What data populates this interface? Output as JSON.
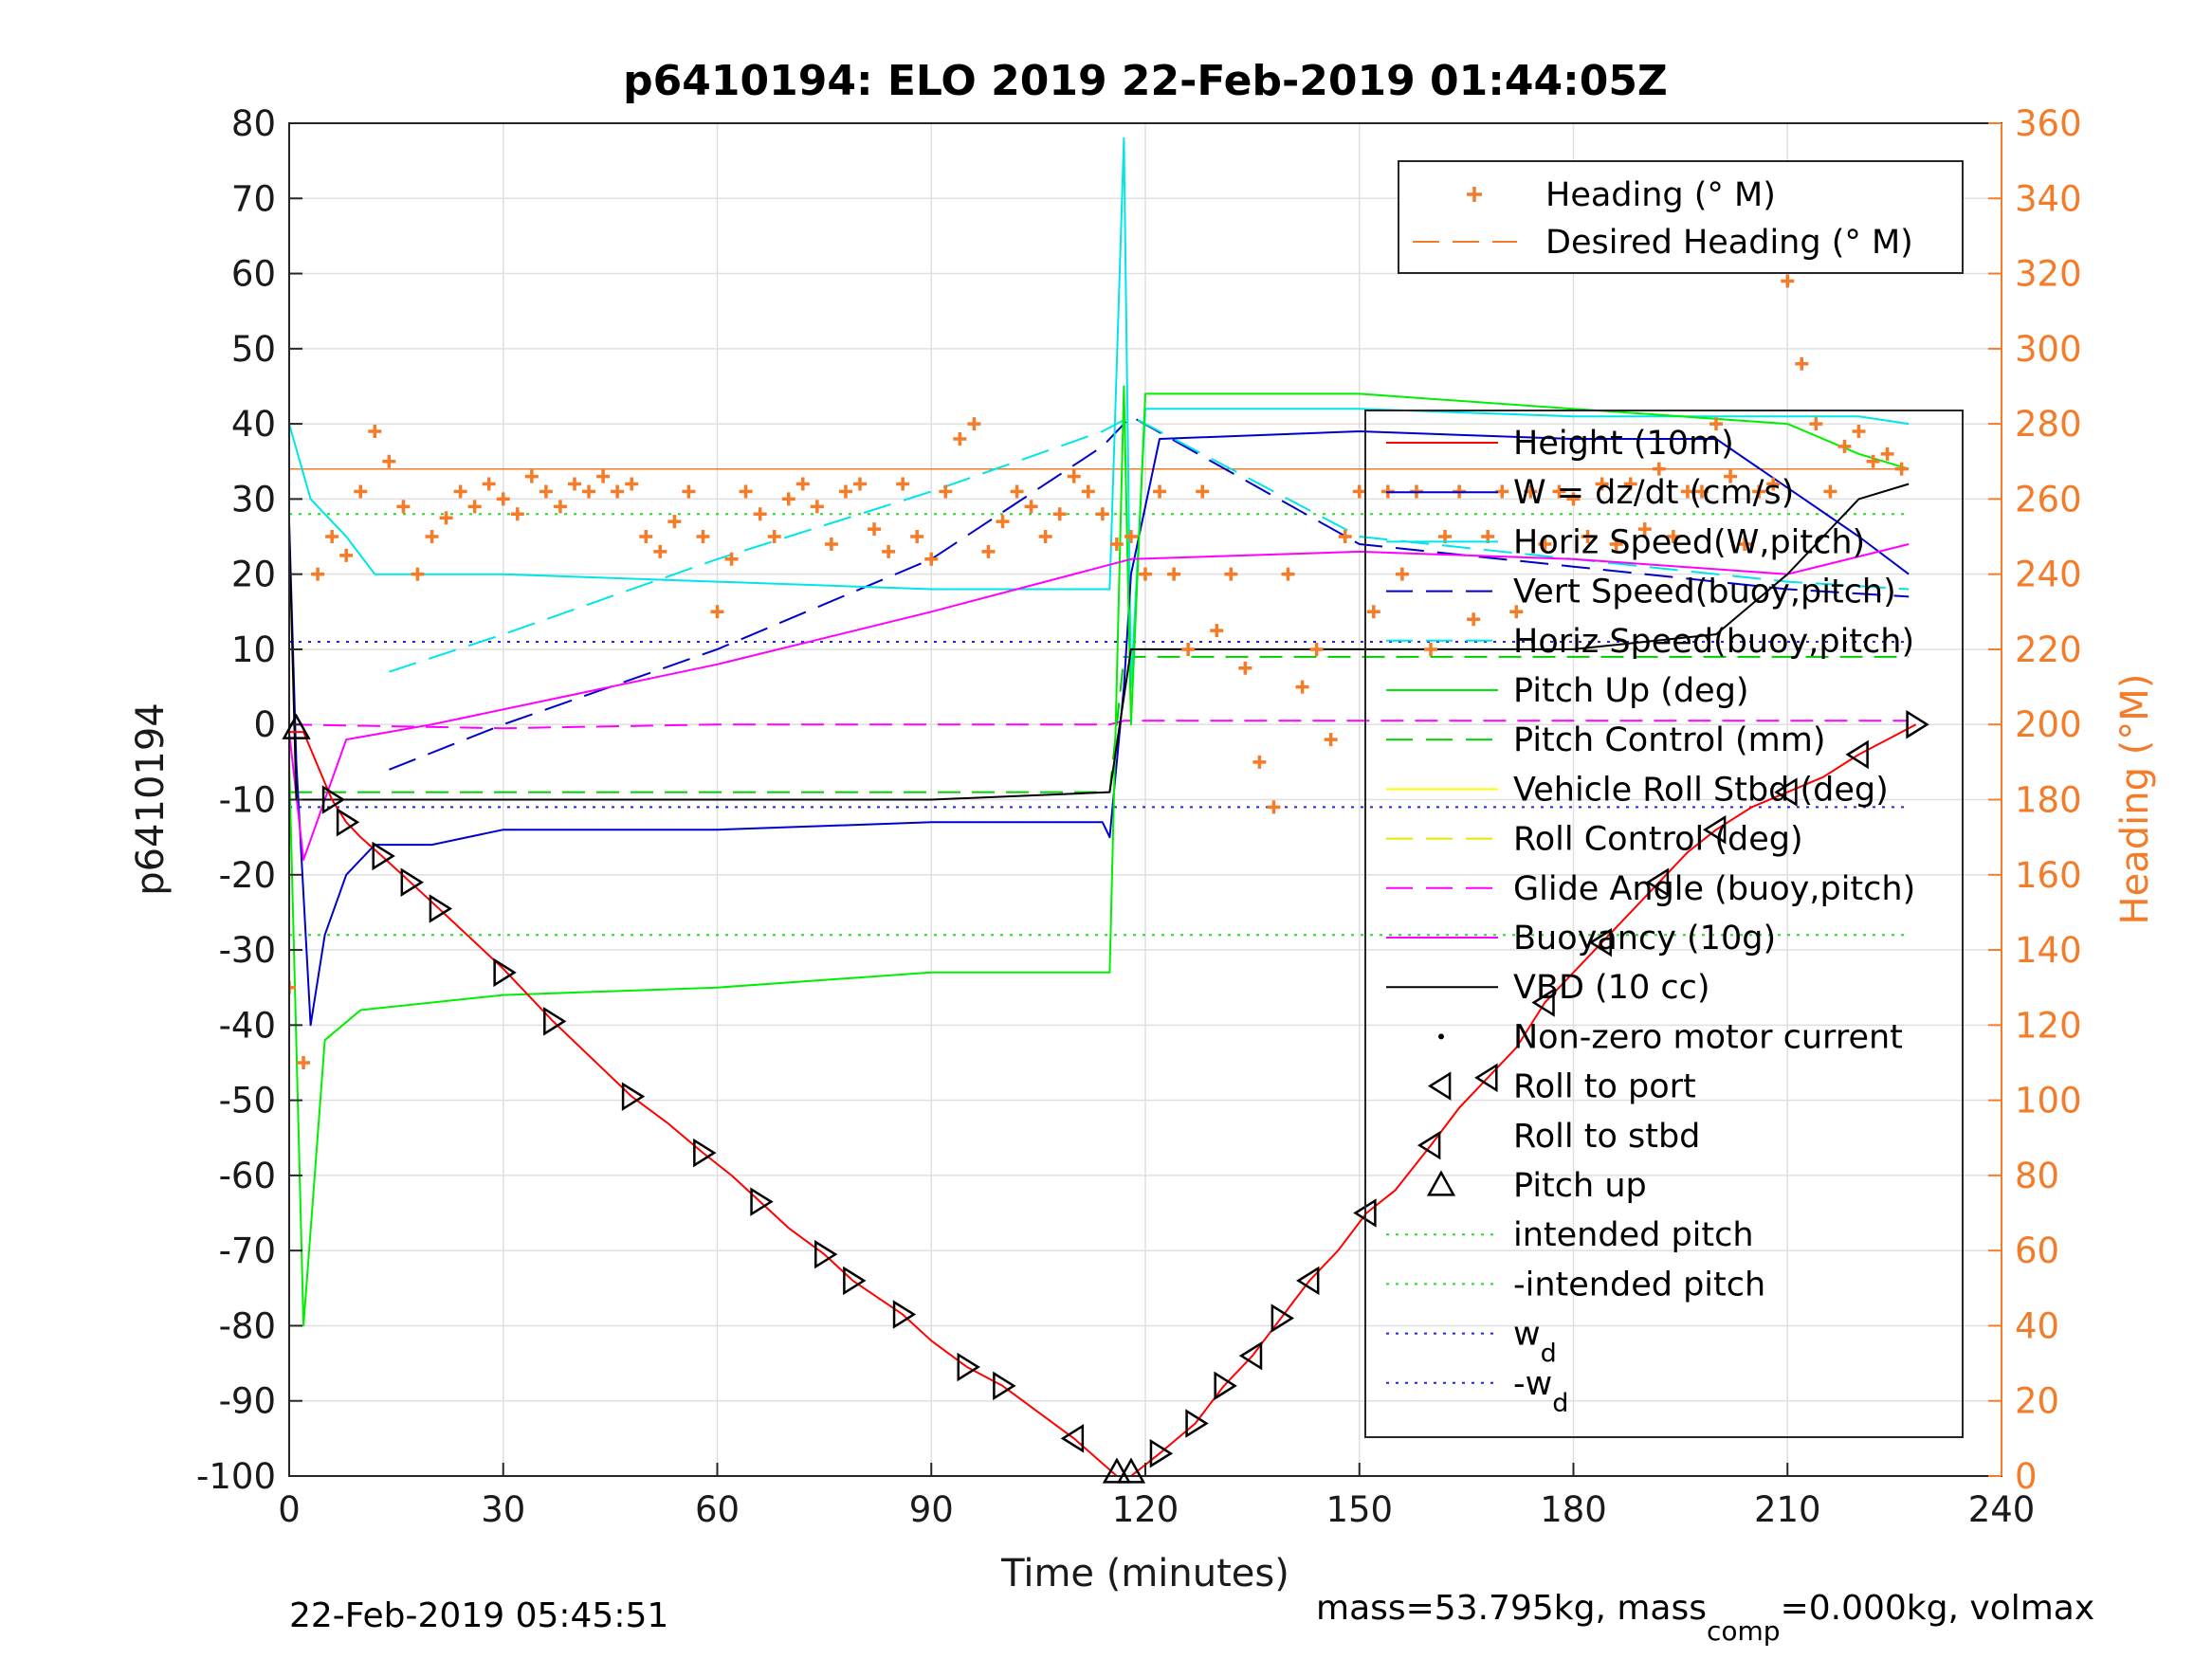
{
  "chart_data": {
    "type": "line",
    "title": "p6410194: ELO 2019 22-Feb-2019 01:44:05Z",
    "xlabel": "Time (minutes)",
    "ylabel": "p6410194",
    "ylabel_right": "Heading (°M)",
    "xlim": [
      0,
      240
    ],
    "ylim": [
      -100,
      80
    ],
    "ylim_right": [
      0,
      360
    ],
    "grid": true,
    "x_ticks": [
      "0",
      "30",
      "60",
      "90",
      "120",
      "150",
      "180",
      "210",
      "240"
    ],
    "y_ticks": [
      "80",
      "70",
      "60",
      "50",
      "40",
      "30",
      "20",
      "10",
      "0",
      "-10",
      "-20",
      "-30",
      "-40",
      "-50",
      "-60",
      "-70",
      "-80",
      "-90",
      "-100"
    ],
    "y_ticks_right": [
      "360",
      "340",
      "320",
      "300",
      "280",
      "260",
      "240",
      "220",
      "200",
      "180",
      "160",
      "140",
      "120",
      "100",
      "80",
      "60",
      "40",
      "20",
      "0"
    ],
    "legend_top": [
      "Heading (° M)",
      "Desired Heading (° M)"
    ],
    "legend_main": [
      "Height (10m)",
      "W = dz/dt (cm/s)",
      "Horiz Speed(W,pitch)",
      "Vert Speed(buoy,pitch)",
      "Horiz Speed(buoy,pitch)",
      "Pitch Up (deg)",
      "Pitch Control (mm)",
      "Vehicle Roll Stbd (deg)",
      "Roll Control (deg)",
      "Glide Angle (buoy,pitch)",
      "Buoyancy (10g)",
      "VBD (10 cc)",
      "Non-zero motor current",
      "Roll to port",
      "Roll to stbd",
      "Pitch up",
      "intended pitch",
      "-intended pitch",
      "w",
      "-w"
    ],
    "legend_subscript": "d",
    "footer_left": "22-Feb-2019 05:45:51",
    "footer_right_a": "mass=53.795kg, mass",
    "footer_right_sub": "comp",
    "footer_right_b": "=0.000kg, volmax",
    "colors": {
      "height": "#ff0000",
      "w": "#0000cc",
      "horiz_w": "#00e5e5",
      "vert_buoy": "#0000cc",
      "horiz_buoy": "#00e5e5",
      "pitch": "#00ee00",
      "pitch_ctl": "#00cc00",
      "roll": "#ffff00",
      "roll_ctl": "#e6e600",
      "glide": "#ff00ff",
      "buoy": "#ff00ff",
      "vbd": "#000000",
      "heading": "#f47b28",
      "intended": "#22dd22",
      "wd": "#2222dd"
    },
    "height_10m": [
      [
        0,
        -1
      ],
      [
        2,
        -1
      ],
      [
        6,
        -10
      ],
      [
        8,
        -13
      ],
      [
        10,
        -15
      ],
      [
        13,
        -17.5
      ],
      [
        17,
        -21
      ],
      [
        21,
        -24.5
      ],
      [
        30,
        -32.5
      ],
      [
        33,
        -35.5
      ],
      [
        37,
        -39.5
      ],
      [
        48,
        -49.5
      ],
      [
        53,
        -53
      ],
      [
        58,
        -57
      ],
      [
        62,
        -60
      ],
      [
        66,
        -63.5
      ],
      [
        70,
        -67
      ],
      [
        75,
        -70.5
      ],
      [
        79,
        -74
      ],
      [
        86,
        -78.5
      ],
      [
        90,
        -82
      ],
      [
        95,
        -85.5
      ],
      [
        100,
        -88
      ],
      [
        110,
        -95
      ],
      [
        116,
        -100
      ],
      [
        118,
        -100
      ],
      [
        122,
        -97
      ],
      [
        127,
        -93
      ],
      [
        131,
        -88
      ],
      [
        135,
        -84
      ],
      [
        139,
        -79
      ],
      [
        143,
        -74
      ],
      [
        147,
        -70
      ],
      [
        151,
        -65
      ],
      [
        155,
        -62
      ],
      [
        160,
        -56
      ],
      [
        164,
        -51
      ],
      [
        168,
        -47
      ],
      [
        172,
        -43
      ],
      [
        176,
        -37
      ],
      [
        180,
        -33
      ],
      [
        184,
        -29
      ],
      [
        188,
        -25
      ],
      [
        192,
        -21
      ],
      [
        196,
        -17
      ],
      [
        200,
        -14
      ],
      [
        205,
        -11
      ],
      [
        210,
        -9
      ],
      [
        215,
        -7
      ],
      [
        220,
        -4
      ],
      [
        224,
        -2
      ],
      [
        228,
        0
      ]
    ],
    "w_cms": [
      [
        0,
        27
      ],
      [
        1,
        -5
      ],
      [
        3,
        -40
      ],
      [
        5,
        -28
      ],
      [
        8,
        -20
      ],
      [
        12,
        -16
      ],
      [
        20,
        -16
      ],
      [
        30,
        -14
      ],
      [
        60,
        -14
      ],
      [
        90,
        -13
      ],
      [
        114,
        -13
      ],
      [
        115,
        -15
      ],
      [
        117,
        5
      ],
      [
        118,
        20
      ],
      [
        122,
        38
      ],
      [
        150,
        39
      ],
      [
        180,
        38
      ],
      [
        200,
        38
      ],
      [
        220,
        25
      ],
      [
        227,
        20
      ]
    ],
    "horiz_speed_w": [
      [
        0,
        40
      ],
      [
        3,
        30
      ],
      [
        8,
        25
      ],
      [
        12,
        20
      ],
      [
        30,
        20
      ],
      [
        60,
        19
      ],
      [
        90,
        18
      ],
      [
        115,
        18
      ],
      [
        117,
        78
      ],
      [
        118,
        5
      ],
      [
        120,
        42
      ],
      [
        150,
        42
      ],
      [
        180,
        41
      ],
      [
        220,
        41
      ],
      [
        227,
        40
      ]
    ],
    "vert_speed_buoy": [
      [
        14,
        -6
      ],
      [
        30,
        0
      ],
      [
        60,
        10
      ],
      [
        90,
        22
      ],
      [
        114,
        37
      ],
      [
        118,
        41
      ],
      [
        150,
        24
      ],
      [
        180,
        21
      ],
      [
        210,
        18
      ],
      [
        227,
        17
      ]
    ],
    "horiz_speed_buoy": [
      [
        14,
        7
      ],
      [
        30,
        12
      ],
      [
        60,
        22
      ],
      [
        90,
        31
      ],
      [
        114,
        39
      ],
      [
        118,
        41
      ],
      [
        150,
        25
      ],
      [
        180,
        22
      ],
      [
        210,
        19
      ],
      [
        227,
        18
      ]
    ],
    "pitch_up": [
      [
        0,
        -5
      ],
      [
        2,
        -80
      ],
      [
        5,
        -42
      ],
      [
        10,
        -38
      ],
      [
        30,
        -36
      ],
      [
        60,
        -35
      ],
      [
        90,
        -33
      ],
      [
        115,
        -33
      ],
      [
        117,
        45
      ],
      [
        118,
        0
      ],
      [
        120,
        44
      ],
      [
        150,
        44
      ],
      [
        180,
        42
      ],
      [
        210,
        40
      ],
      [
        220,
        36
      ],
      [
        227,
        34
      ]
    ],
    "pitch_control": [
      [
        0,
        -9
      ],
      [
        30,
        -9
      ],
      [
        60,
        -9
      ],
      [
        90,
        -9
      ],
      [
        115,
        -9
      ],
      [
        117,
        9
      ],
      [
        150,
        9
      ],
      [
        180,
        9
      ],
      [
        210,
        9
      ],
      [
        227,
        9
      ]
    ],
    "glide_angle": [
      [
        0,
        0
      ],
      [
        30,
        -0.5
      ],
      [
        60,
        0
      ],
      [
        90,
        0
      ],
      [
        115,
        0
      ],
      [
        117,
        0.5
      ],
      [
        150,
        0.5
      ],
      [
        180,
        0.5
      ],
      [
        227,
        0.5
      ]
    ],
    "buoyancy_10g": [
      [
        0,
        -1
      ],
      [
        2,
        -18
      ],
      [
        8,
        -2
      ],
      [
        20,
        0
      ],
      [
        60,
        8
      ],
      [
        90,
        15
      ],
      [
        114,
        21
      ],
      [
        118,
        22
      ],
      [
        150,
        23
      ],
      [
        180,
        22
      ],
      [
        210,
        20
      ],
      [
        227,
        24
      ]
    ],
    "vbd_10cc": [
      [
        0,
        26
      ],
      [
        1,
        -10
      ],
      [
        30,
        -10
      ],
      [
        60,
        -10
      ],
      [
        90,
        -10
      ],
      [
        115,
        -9
      ],
      [
        118,
        10
      ],
      [
        150,
        10
      ],
      [
        180,
        10
      ],
      [
        200,
        12
      ],
      [
        210,
        20
      ],
      [
        220,
        30
      ],
      [
        227,
        32
      ]
    ],
    "intended_pitch": [
      [
        0,
        28
      ],
      [
        227,
        28
      ]
    ],
    "neg_intended_pitch": [
      [
        0,
        -28
      ],
      [
        227,
        -28
      ]
    ],
    "wd": [
      [
        0,
        11
      ],
      [
        227,
        11
      ]
    ],
    "neg_wd": [
      [
        0,
        -11
      ],
      [
        227,
        -11
      ]
    ],
    "desired_heading_deg": [
      [
        0,
        268
      ],
      [
        115,
        268
      ],
      [
        116,
        268
      ],
      [
        227,
        268
      ]
    ],
    "heading_deg": [
      [
        0,
        130
      ],
      [
        2,
        110
      ],
      [
        4,
        240
      ],
      [
        6,
        250
      ],
      [
        8,
        245
      ],
      [
        10,
        262
      ],
      [
        12,
        278
      ],
      [
        14,
        270
      ],
      [
        16,
        258
      ],
      [
        18,
        240
      ],
      [
        20,
        250
      ],
      [
        22,
        255
      ],
      [
        24,
        262
      ],
      [
        26,
        258
      ],
      [
        28,
        264
      ],
      [
        30,
        260
      ],
      [
        32,
        256
      ],
      [
        34,
        266
      ],
      [
        36,
        262
      ],
      [
        38,
        258
      ],
      [
        40,
        264
      ],
      [
        42,
        262
      ],
      [
        44,
        266
      ],
      [
        46,
        262
      ],
      [
        48,
        264
      ],
      [
        50,
        250
      ],
      [
        52,
        246
      ],
      [
        54,
        254
      ],
      [
        56,
        262
      ],
      [
        58,
        250
      ],
      [
        60,
        230
      ],
      [
        62,
        244
      ],
      [
        64,
        262
      ],
      [
        66,
        256
      ],
      [
        68,
        250
      ],
      [
        70,
        260
      ],
      [
        72,
        264
      ],
      [
        74,
        258
      ],
      [
        76,
        248
      ],
      [
        78,
        262
      ],
      [
        80,
        264
      ],
      [
        82,
        252
      ],
      [
        84,
        246
      ],
      [
        86,
        264
      ],
      [
        88,
        250
      ],
      [
        90,
        244
      ],
      [
        92,
        262
      ],
      [
        94,
        276
      ],
      [
        96,
        280
      ],
      [
        98,
        246
      ],
      [
        100,
        254
      ],
      [
        102,
        262
      ],
      [
        104,
        258
      ],
      [
        106,
        250
      ],
      [
        108,
        256
      ],
      [
        110,
        266
      ],
      [
        112,
        262
      ],
      [
        114,
        256
      ],
      [
        116,
        248
      ],
      [
        118,
        250
      ],
      [
        120,
        240
      ],
      [
        122,
        262
      ],
      [
        124,
        240
      ],
      [
        126,
        220
      ],
      [
        128,
        262
      ],
      [
        130,
        225
      ],
      [
        132,
        240
      ],
      [
        134,
        215
      ],
      [
        136,
        190
      ],
      [
        138,
        178
      ],
      [
        140,
        240
      ],
      [
        142,
        210
      ],
      [
        144,
        220
      ],
      [
        146,
        196
      ],
      [
        148,
        250
      ],
      [
        150,
        262
      ],
      [
        152,
        230
      ],
      [
        154,
        262
      ],
      [
        156,
        240
      ],
      [
        158,
        262
      ],
      [
        160,
        220
      ],
      [
        162,
        250
      ],
      [
        164,
        262
      ],
      [
        166,
        228
      ],
      [
        168,
        250
      ],
      [
        170,
        262
      ],
      [
        172,
        230
      ],
      [
        174,
        262
      ],
      [
        176,
        248
      ],
      [
        178,
        262
      ],
      [
        180,
        260
      ],
      [
        182,
        250
      ],
      [
        184,
        264
      ],
      [
        186,
        248
      ],
      [
        188,
        264
      ],
      [
        190,
        252
      ],
      [
        192,
        268
      ],
      [
        194,
        250
      ],
      [
        196,
        262
      ],
      [
        198,
        262
      ],
      [
        200,
        280
      ],
      [
        202,
        266
      ],
      [
        204,
        248
      ],
      [
        206,
        262
      ],
      [
        208,
        264
      ],
      [
        210,
        318
      ],
      [
        212,
        296
      ],
      [
        214,
        280
      ],
      [
        216,
        262
      ],
      [
        218,
        274
      ],
      [
        220,
        278
      ],
      [
        222,
        270
      ],
      [
        224,
        272
      ],
      [
        226,
        268
      ]
    ],
    "markers_roll_stbd": [
      [
        6,
        -10
      ],
      [
        8,
        -13
      ],
      [
        13,
        -17.5
      ],
      [
        17,
        -21
      ],
      [
        21,
        -24.5
      ],
      [
        30,
        -33
      ],
      [
        37,
        -39.5
      ],
      [
        48,
        -49.5
      ],
      [
        58,
        -57
      ],
      [
        66,
        -63.5
      ],
      [
        75,
        -70.5
      ],
      [
        79,
        -74
      ],
      [
        86,
        -78.5
      ],
      [
        95,
        -85.5
      ],
      [
        100,
        -88
      ],
      [
        122,
        -97
      ],
      [
        127,
        -93
      ],
      [
        131,
        -88
      ],
      [
        139,
        -79
      ],
      [
        228,
        0
      ]
    ],
    "markers_roll_port": [
      [
        110,
        -95
      ],
      [
        135,
        -84
      ],
      [
        143,
        -74
      ],
      [
        151,
        -65
      ],
      [
        160,
        -56
      ],
      [
        168,
        -47
      ],
      [
        176,
        -37
      ],
      [
        184,
        -29
      ],
      [
        192,
        -21
      ],
      [
        200,
        -14
      ],
      [
        210,
        -9
      ],
      [
        220,
        -4
      ]
    ],
    "markers_pitch_up": [
      [
        1,
        -0.5
      ],
      [
        116,
        -99.5
      ],
      [
        118,
        -99.5
      ]
    ]
  }
}
